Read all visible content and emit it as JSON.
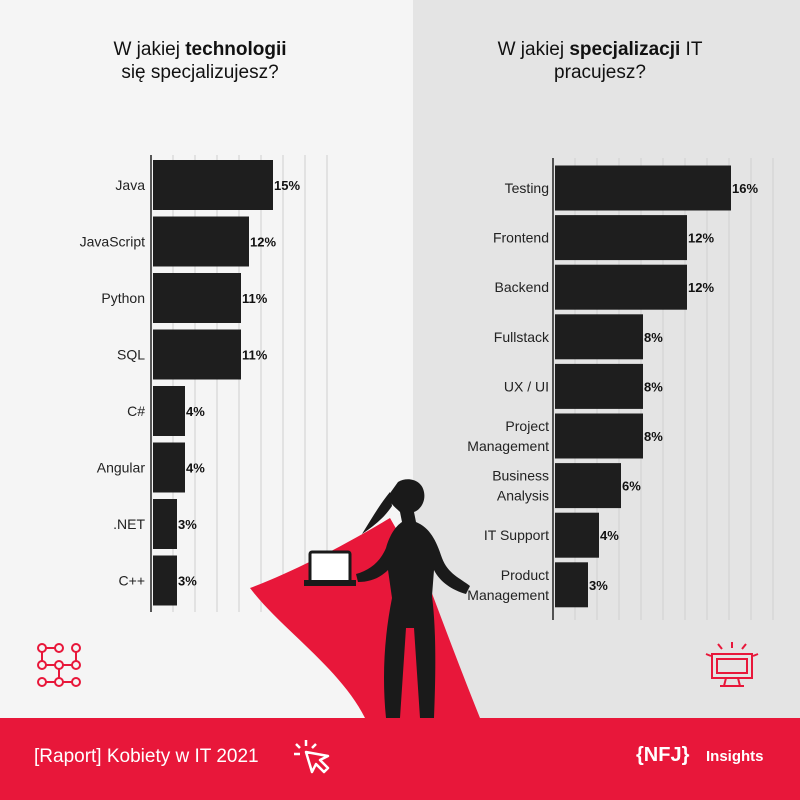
{
  "left_title": {
    "pre": "W jakiej ",
    "bold": "technologii",
    "line2": "się specjalizujesz?"
  },
  "right_title": {
    "pre": "W jakiej ",
    "bold": "specjalizacji",
    "post": " IT",
    "line2": "pracujesz?"
  },
  "footer": {
    "report": "[Raport] Kobiety w IT 2021",
    "logo": "{NFJ}",
    "insights": "Insights"
  },
  "colors": {
    "bar": "#1e1e1e",
    "accent": "#e8173a",
    "left_bg": "#f5f5f5",
    "right_bg": "#e4e4e4"
  },
  "icons": [
    "network-nodes-icon",
    "monitor-icon",
    "cursor-click-icon",
    "superhero-woman-laptop"
  ],
  "chart_data": [
    {
      "type": "bar",
      "orientation": "horizontal",
      "categories": [
        "Java",
        "JavaScript",
        "Python",
        "SQL",
        "C#",
        "Angular",
        ".NET",
        "C++"
      ],
      "values": [
        15,
        12,
        11,
        11,
        4,
        4,
        3,
        3
      ],
      "labels": [
        "15%",
        "12%",
        "11%",
        "11%",
        "4%",
        "4%",
        "3%",
        "3%"
      ],
      "grid": true
    },
    {
      "type": "bar",
      "orientation": "horizontal",
      "categories": [
        [
          "Testing"
        ],
        [
          "Frontend"
        ],
        [
          "Backend"
        ],
        [
          "Fullstack"
        ],
        [
          "UX / UI"
        ],
        [
          "Project",
          "Management"
        ],
        [
          "Business",
          "Analysis"
        ],
        [
          "IT Support"
        ],
        [
          "Product",
          "Management"
        ]
      ],
      "values": [
        16,
        12,
        12,
        8,
        8,
        8,
        6,
        4,
        3
      ],
      "labels": [
        "16%",
        "12%",
        "12%",
        "8%",
        "8%",
        "8%",
        "6%",
        "4%",
        "3%"
      ],
      "grid": true
    }
  ]
}
